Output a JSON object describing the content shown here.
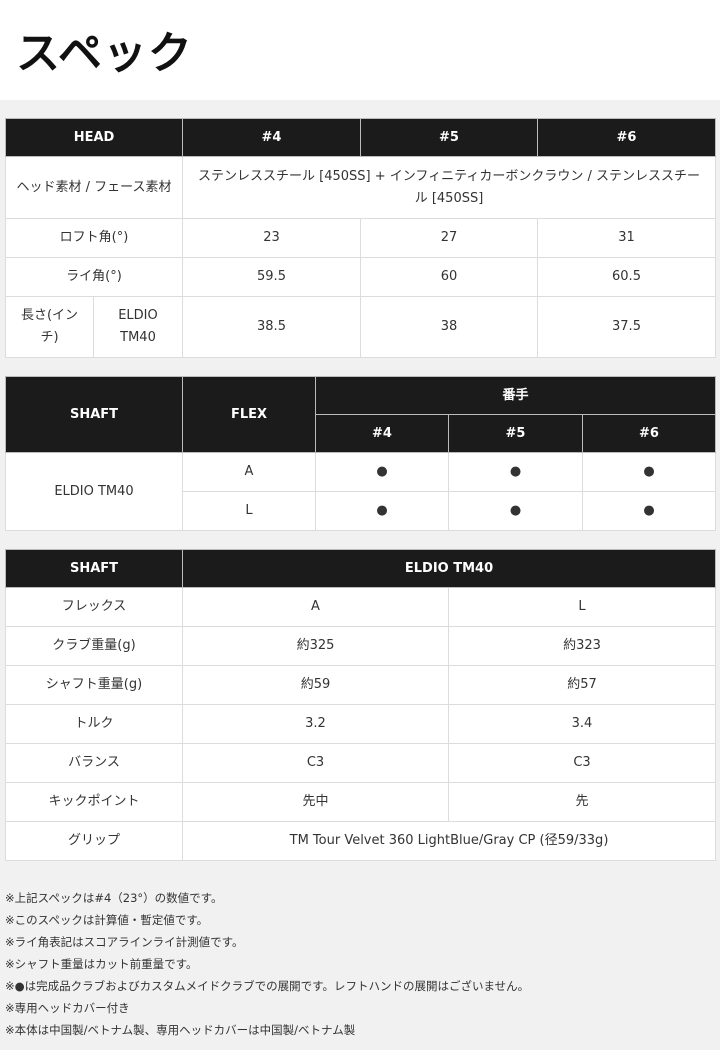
{
  "page": {
    "title": "スペック"
  },
  "head_table": {
    "headers": [
      "HEAD",
      "#4",
      "#5",
      "#6"
    ],
    "material": {
      "label": "ヘッド素材 / フェース素材",
      "value": "ステンレススチール [450SS] + インフィニティカーボンクラウン / ステンレススチール [450SS]"
    },
    "loft": {
      "label": "ロフト角(°)",
      "values": [
        "23",
        "27",
        "31"
      ]
    },
    "lie": {
      "label": "ライ角(°)",
      "values": [
        "59.5",
        "60",
        "60.5"
      ]
    },
    "length": {
      "label": "長さ(インチ)",
      "shaft": "ELDIO TM40",
      "values": [
        "38.5",
        "38",
        "37.5"
      ]
    }
  },
  "flex_table": {
    "headers": {
      "shaft": "SHAFT",
      "flex": "FLEX",
      "number": "番手",
      "numbers": [
        "#4",
        "#5",
        "#6"
      ]
    },
    "shaft": "ELDIO TM40",
    "rows": [
      {
        "flex": "A",
        "marks": [
          "●",
          "●",
          "●"
        ]
      },
      {
        "flex": "L",
        "marks": [
          "●",
          "●",
          "●"
        ]
      }
    ]
  },
  "shaft_table": {
    "headers": [
      "SHAFT",
      "ELDIO TM40"
    ],
    "rows": [
      {
        "label": "フレックス",
        "values": [
          "A",
          "L"
        ]
      },
      {
        "label": "クラブ重量(g)",
        "values": [
          "約325",
          "約323"
        ]
      },
      {
        "label": "シャフト重量(g)",
        "values": [
          "約59",
          "約57"
        ]
      },
      {
        "label": "トルク",
        "values": [
          "3.2",
          "3.4"
        ]
      },
      {
        "label": "バランス",
        "values": [
          "C3",
          "C3"
        ]
      },
      {
        "label": "キックポイント",
        "values": [
          "先中",
          "先"
        ]
      }
    ],
    "grip": {
      "label": "グリップ",
      "value": "TM Tour Velvet 360 LightBlue/Gray CP (径59/33g)"
    }
  },
  "notes": [
    "※上記スペックは#4（23°）の数値です。",
    "※このスペックは計算値・暫定値です。",
    "※ライ角表記はスコアラインライ計測値です。",
    "※シャフト重量はカット前重量です。",
    "※●は完成品クラブおよびカスタムメイドクラブでの展開です。レフトハンドの展開はございません。",
    "※専用ヘッドカバー付き",
    "※本体は中国製/ベトナム製、専用ヘッドカバーは中国製/ベトナム製"
  ]
}
